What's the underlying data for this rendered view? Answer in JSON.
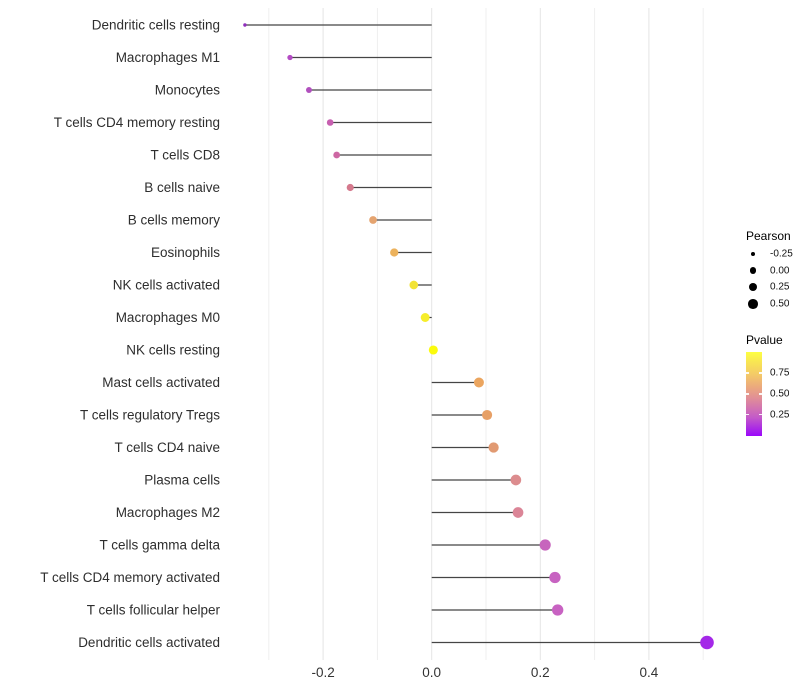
{
  "chart_data": {
    "type": "lollipop",
    "orientation": "horizontal",
    "xlabel": "",
    "ylabel": "",
    "x_axis": {
      "tick_labels": [
        "-0.2",
        "0.0",
        "0.2",
        "0.4"
      ],
      "tick_values": [
        -0.2,
        0.0,
        0.2,
        0.4
      ],
      "gridline_values": [
        -0.3,
        -0.2,
        -0.1,
        0.0,
        0.1,
        0.2,
        0.3,
        0.4,
        0.5
      ],
      "range": [
        -0.39,
        0.55
      ],
      "grid": "vertical-only"
    },
    "encoding": {
      "x": "Pearson correlation",
      "size": "Pearson",
      "color": "Pvalue"
    },
    "points": [
      {
        "label": "Dendritic cells resting",
        "pearson": -0.344,
        "pvalue_color": "#8F2EBC",
        "pvalue_approx": 0.1
      },
      {
        "label": "Macrophages M1",
        "pearson": -0.261,
        "pvalue_color": "#B44BC4",
        "pvalue_approx": 0.28
      },
      {
        "label": "Monocytes",
        "pearson": -0.226,
        "pvalue_color": "#B150BE",
        "pvalue_approx": 0.3
      },
      {
        "label": "T cells CD4 memory resting",
        "pearson": -0.187,
        "pvalue_color": "#C75FB0",
        "pvalue_approx": 0.42
      },
      {
        "label": "T cells CD8",
        "pearson": -0.175,
        "pvalue_color": "#CD67A3",
        "pvalue_approx": 0.47
      },
      {
        "label": "B cells naive",
        "pearson": -0.15,
        "pvalue_color": "#D5798D",
        "pvalue_approx": 0.55
      },
      {
        "label": "B cells memory",
        "pearson": -0.108,
        "pvalue_color": "#E5A470",
        "pvalue_approx": 0.72
      },
      {
        "label": "Eosinophils",
        "pearson": -0.069,
        "pvalue_color": "#ECB25C",
        "pvalue_approx": 0.78
      },
      {
        "label": "NK cells activated",
        "pearson": -0.033,
        "pvalue_color": "#F2E335",
        "pvalue_approx": 0.93
      },
      {
        "label": "Macrophages M0",
        "pearson": -0.012,
        "pvalue_color": "#F6ED2B",
        "pvalue_approx": 0.96
      },
      {
        "label": "NK cells resting",
        "pearson": 0.003,
        "pvalue_color": "#FBFB0C",
        "pvalue_approx": 0.99
      },
      {
        "label": "Mast cells activated",
        "pearson": 0.087,
        "pvalue_color": "#EBA55F",
        "pvalue_approx": 0.76
      },
      {
        "label": "T cells regulatory Tregs",
        "pearson": 0.102,
        "pvalue_color": "#E7A066",
        "pvalue_approx": 0.73
      },
      {
        "label": "T cells CD4 naive",
        "pearson": 0.114,
        "pvalue_color": "#E19A72",
        "pvalue_approx": 0.68
      },
      {
        "label": "Plasma cells",
        "pearson": 0.155,
        "pvalue_color": "#DC8C8E",
        "pvalue_approx": 0.58
      },
      {
        "label": "Macrophages M2",
        "pearson": 0.159,
        "pvalue_color": "#DB8597",
        "pvalue_approx": 0.56
      },
      {
        "label": "T cells gamma delta",
        "pearson": 0.209,
        "pvalue_color": "#C765BD",
        "pvalue_approx": 0.4
      },
      {
        "label": "T cells CD4 memory activated",
        "pearson": 0.227,
        "pvalue_color": "#C763C1",
        "pvalue_approx": 0.37
      },
      {
        "label": "T cells follicular helper",
        "pearson": 0.232,
        "pvalue_color": "#C862C2",
        "pvalue_approx": 0.36
      },
      {
        "label": "Dendritic cells activated",
        "pearson": 0.507,
        "pvalue_color": "#A428E8",
        "pvalue_approx": 0.02
      }
    ],
    "legend_size": {
      "title": "Pearson",
      "items": [
        "-0.25",
        "0.00",
        "0.25",
        "0.50"
      ],
      "item_values": [
        -0.25,
        0.0,
        0.25,
        0.5
      ],
      "dot_color": "#000000",
      "position": "right"
    },
    "legend_color": {
      "title": "Pvalue",
      "tick_labels": [
        "0.75",
        "0.50",
        "0.25"
      ],
      "tick_values": [
        0.75,
        0.5,
        0.25
      ],
      "scale_range": [
        0,
        1
      ],
      "gradient_top_color": "#FDFF42",
      "gradient_bottom_color": "#9B07FB",
      "position": "right"
    },
    "style": {
      "stem_color": "#454545",
      "gridline_major_color": "#e4e4e4",
      "gridline_minor_color": "#efefef",
      "axis_text_color": "#333333",
      "background": "#ffffff"
    }
  }
}
